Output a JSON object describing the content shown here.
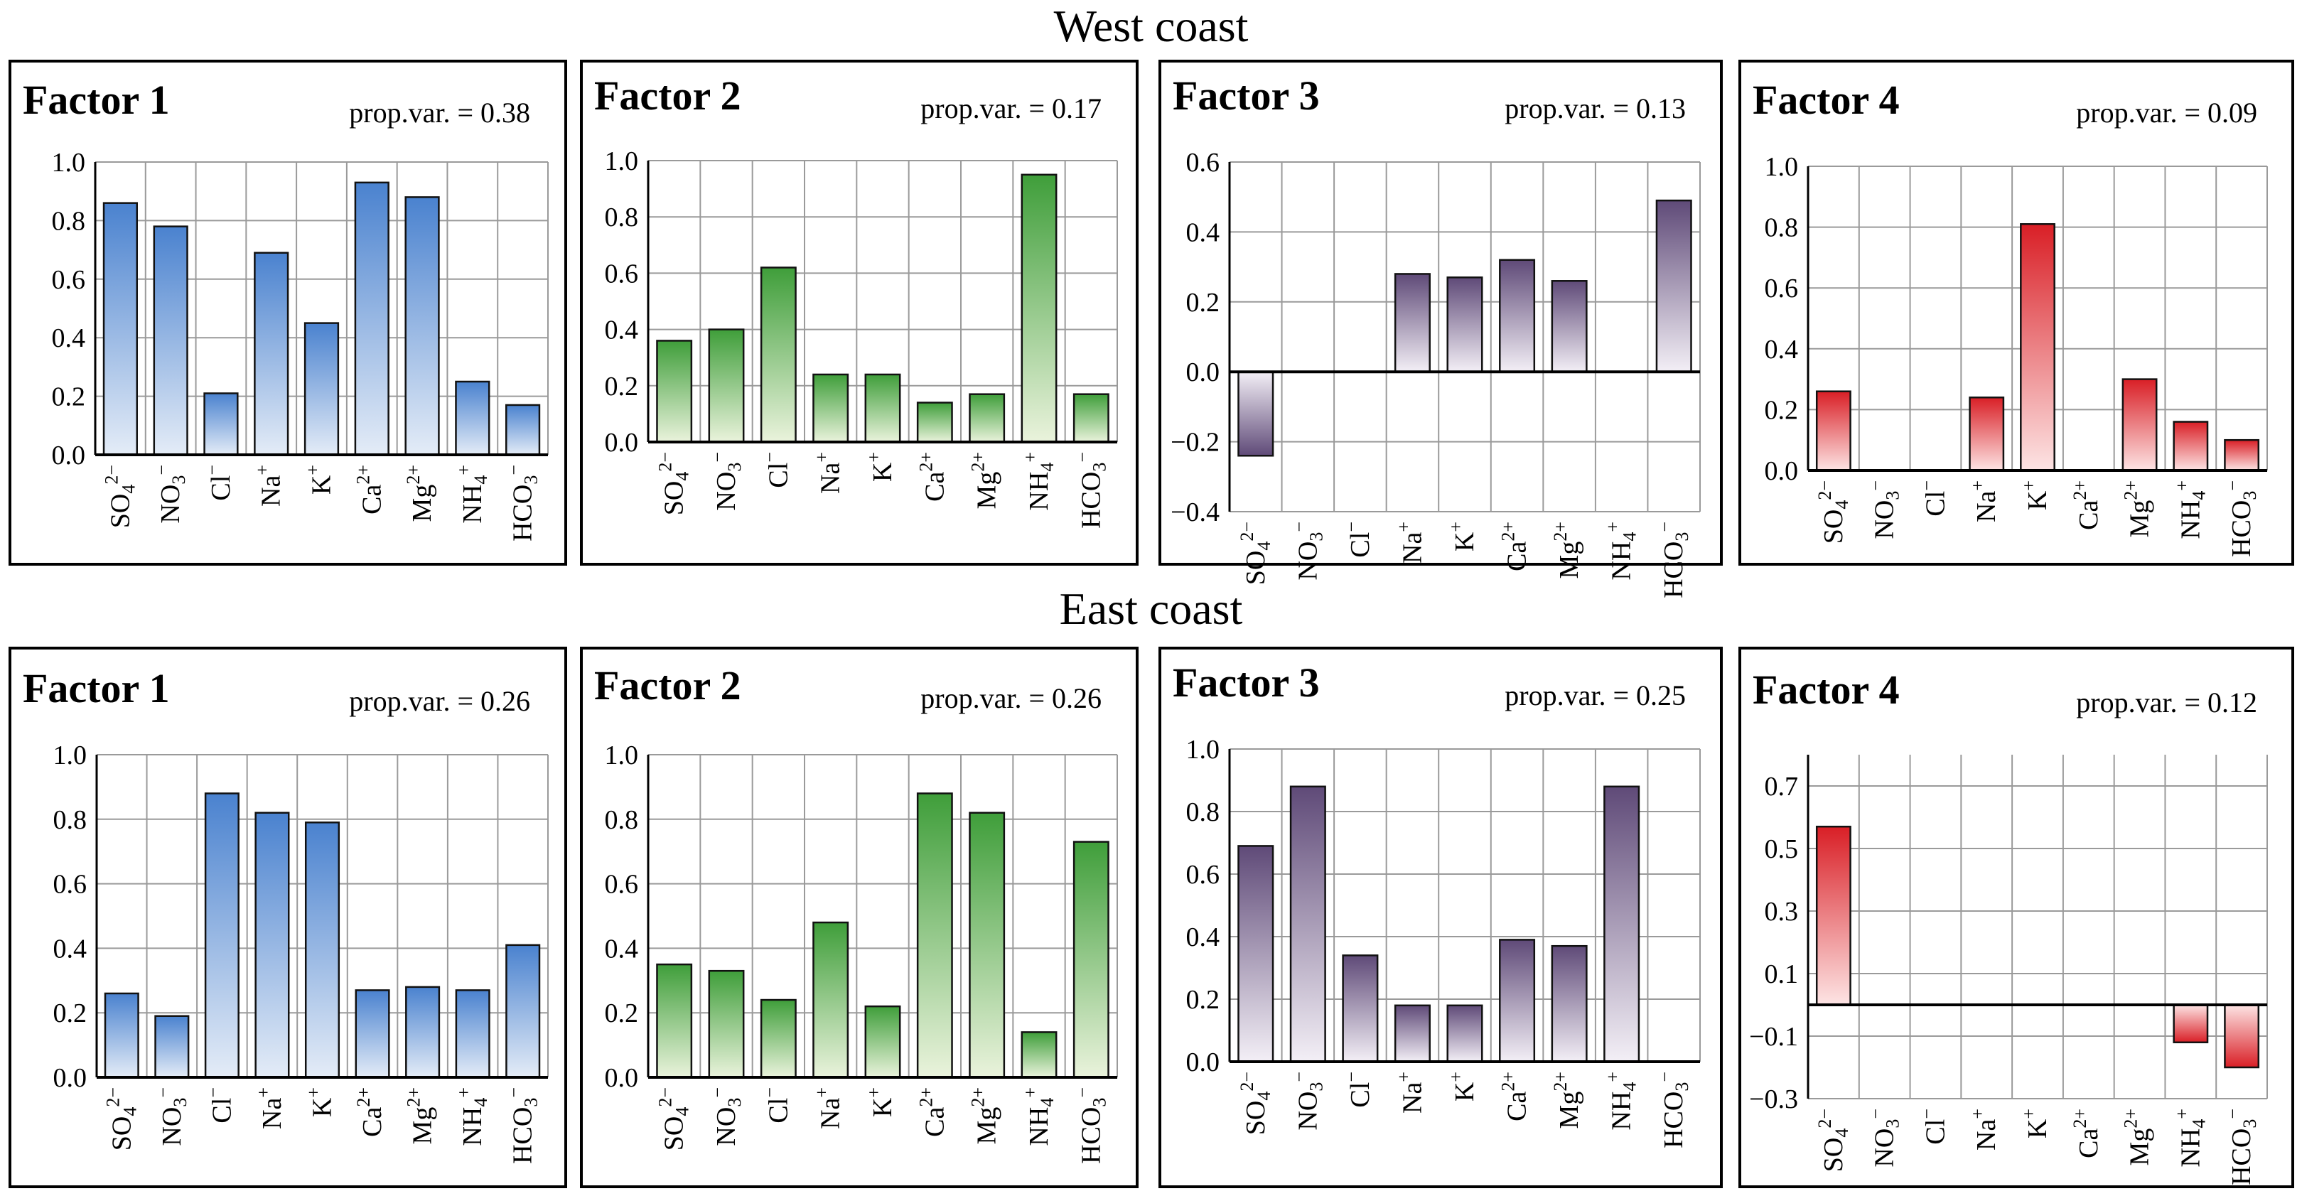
{
  "sections": [
    {
      "title": "West coast"
    },
    {
      "title": "East coast"
    }
  ],
  "colors": {
    "blue": [
      "#4a82cf",
      "#e4ecf7"
    ],
    "green": [
      "#3f9e3a",
      "#eaf3dc"
    ],
    "purple": [
      "#5f4a78",
      "#f3eff6"
    ],
    "red": [
      "#d91f26",
      "#fde4e4"
    ]
  },
  "chart_data": [
    {
      "type": "bar",
      "region": "West coast",
      "title": "Factor 1",
      "prop_var": "prop.var. = 0.38",
      "color": "blue",
      "categories": [
        "SO4 2−",
        "NO3 −",
        "Cl−",
        "Na+",
        "K+",
        "Ca2+",
        "Mg2+",
        "NH4+",
        "HCO3 −"
      ],
      "values": [
        0.86,
        0.78,
        0.21,
        0.69,
        0.45,
        0.93,
        0.88,
        0.25,
        0.17
      ],
      "ylim": [
        0,
        1.0
      ],
      "ticks": [
        0.0,
        0.2,
        0.4,
        0.6,
        0.8,
        1.0
      ],
      "tick_labels": [
        "0.0",
        "0.2",
        "0.4",
        "0.6",
        "0.8",
        "1.0"
      ]
    },
    {
      "type": "bar",
      "region": "West coast",
      "title": "Factor 2",
      "prop_var": "prop.var. = 0.17",
      "color": "green",
      "categories": [
        "SO4 2−",
        "NO3 −",
        "Cl−",
        "Na+",
        "K+",
        "Ca2+",
        "Mg2+",
        "NH4+",
        "HCO3 −"
      ],
      "values": [
        0.36,
        0.4,
        0.62,
        0.24,
        0.24,
        0.14,
        0.17,
        0.95,
        0.17
      ],
      "ylim": [
        0,
        1.0
      ],
      "ticks": [
        0.0,
        0.2,
        0.4,
        0.6,
        0.8,
        1.0
      ],
      "tick_labels": [
        "0.0",
        "0.2",
        "0.4",
        "0.6",
        "0.8",
        "1.0"
      ]
    },
    {
      "type": "bar",
      "region": "West coast",
      "title": "Factor 3",
      "prop_var": "prop.var. = 0.13",
      "color": "purple",
      "categories": [
        "SO4 2−",
        "NO3 −",
        "Cl−",
        "Na+",
        "K+",
        "Ca2+",
        "Mg2+",
        "NH4+",
        "HCO3 −"
      ],
      "values": [
        -0.24,
        0,
        0,
        0.28,
        0.27,
        0.32,
        0.26,
        0,
        0.49
      ],
      "ylim": [
        -0.4,
        0.6
      ],
      "ticks": [
        -0.4,
        -0.2,
        0.0,
        0.2,
        0.4,
        0.6
      ],
      "tick_labels": [
        "−0.4",
        "−0.2",
        "0.0",
        "0.2",
        "0.4",
        "0.6"
      ]
    },
    {
      "type": "bar",
      "region": "West coast",
      "title": "Factor 4",
      "prop_var": "prop.var. = 0.09",
      "color": "red",
      "categories": [
        "SO4 2−",
        "NO3 −",
        "Cl−",
        "Na+",
        "K+",
        "Ca2+",
        "Mg2+",
        "NH4+",
        "HCO3 −"
      ],
      "values": [
        0.26,
        0,
        0,
        0.24,
        0.81,
        0,
        0.3,
        0.16,
        0.1
      ],
      "ylim": [
        0,
        1.0
      ],
      "ticks": [
        0.0,
        0.2,
        0.4,
        0.6,
        0.8,
        1.0
      ],
      "tick_labels": [
        "0.0",
        "0.2",
        "0.4",
        "0.6",
        "0.8",
        "1.0"
      ]
    },
    {
      "type": "bar",
      "region": "East coast",
      "title": "Factor 1",
      "prop_var": "prop.var. = 0.26",
      "color": "blue",
      "categories": [
        "SO4 2−",
        "NO3 −",
        "Cl−",
        "Na+",
        "K+",
        "Ca2+",
        "Mg2+",
        "NH4+",
        "HCO3 −"
      ],
      "values": [
        0.26,
        0.19,
        0.88,
        0.82,
        0.79,
        0.27,
        0.28,
        0.27,
        0.41
      ],
      "ylim": [
        0,
        1.0
      ],
      "ticks": [
        0.0,
        0.2,
        0.4,
        0.6,
        0.8,
        1.0
      ],
      "tick_labels": [
        "0.0",
        "0.2",
        "0.4",
        "0.6",
        "0.8",
        "1.0"
      ]
    },
    {
      "type": "bar",
      "region": "East coast",
      "title": "Factor 2",
      "prop_var": "prop.var. = 0.26",
      "color": "green",
      "categories": [
        "SO4 2−",
        "NO3 −",
        "Cl−",
        "Na+",
        "K+",
        "Ca2+",
        "Mg2+",
        "NH4+",
        "HCO3 −"
      ],
      "values": [
        0.35,
        0.33,
        0.24,
        0.48,
        0.22,
        0.88,
        0.82,
        0.14,
        0.73
      ],
      "ylim": [
        0,
        1.0
      ],
      "ticks": [
        0.0,
        0.2,
        0.4,
        0.6,
        0.8,
        1.0
      ],
      "tick_labels": [
        "0.0",
        "0.2",
        "0.4",
        "0.6",
        "0.8",
        "1.0"
      ]
    },
    {
      "type": "bar",
      "region": "East coast",
      "title": "Factor 3",
      "prop_var": "prop.var. = 0.25",
      "color": "purple",
      "categories": [
        "SO4 2−",
        "NO3 −",
        "Cl−",
        "Na+",
        "K+",
        "Ca2+",
        "Mg2+",
        "NH4+",
        "HCO3 −"
      ],
      "values": [
        0.69,
        0.88,
        0.34,
        0.18,
        0.18,
        0.39,
        0.37,
        0.88,
        0
      ],
      "ylim": [
        0,
        1.0
      ],
      "ticks": [
        0.0,
        0.2,
        0.4,
        0.6,
        0.8,
        1.0
      ],
      "tick_labels": [
        "0.0",
        "0.2",
        "0.4",
        "0.6",
        "0.8",
        "1.0"
      ]
    },
    {
      "type": "bar",
      "region": "East coast",
      "title": "Factor 4",
      "prop_var": "prop.var. = 0.12",
      "color": "red",
      "categories": [
        "SO4 2−",
        "NO3 −",
        "Cl−",
        "Na+",
        "K+",
        "Ca2+",
        "Mg2+",
        "NH4+",
        "HCO3 −"
      ],
      "values": [
        0.57,
        0,
        0,
        0,
        0,
        0,
        0,
        -0.12,
        -0.2
      ],
      "ylim": [
        -0.3,
        0.8
      ],
      "ticks": [
        -0.3,
        -0.1,
        0.1,
        0.3,
        0.5,
        0.7
      ],
      "tick_labels": [
        "−0.3",
        "−0.1",
        "0.1",
        "0.3",
        "0.5",
        "0.7"
      ]
    }
  ]
}
